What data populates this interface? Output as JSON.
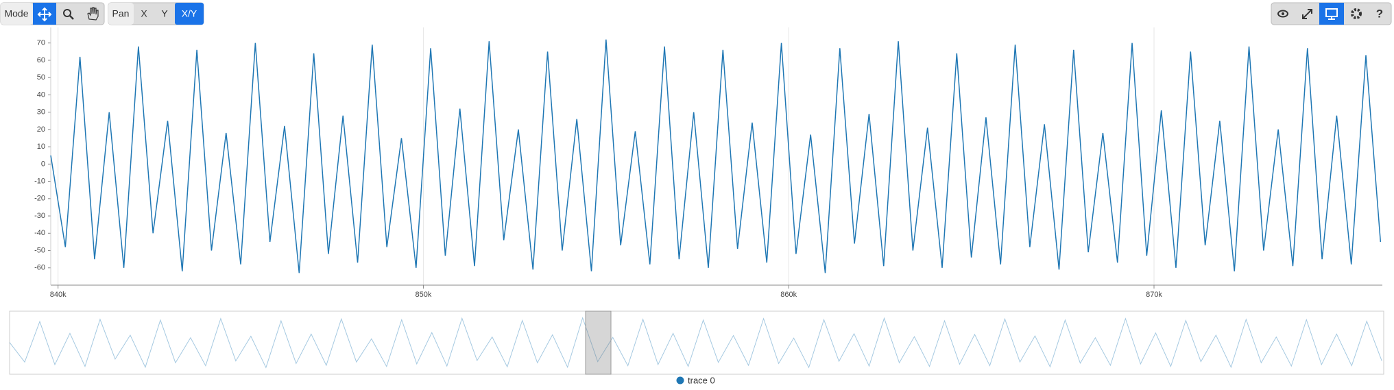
{
  "toolbar": {
    "mode": "Mode",
    "pan": "Pan",
    "axes": [
      "X",
      "Y",
      "X/Y"
    ],
    "help": "?"
  },
  "chart_data": {
    "type": "line",
    "x": [
      839800,
      840200,
      840600,
      841000,
      841400,
      841800,
      842200,
      842600,
      843000,
      843400,
      843800,
      844200,
      844600,
      845000,
      845400,
      845800,
      846200,
      846600,
      847000,
      847400,
      847800,
      848200,
      848600,
      849000,
      849400,
      849800,
      850200,
      850600,
      851000,
      851400,
      851800,
      852200,
      852600,
      853000,
      853400,
      853800,
      854200,
      854600,
      855000,
      855400,
      855800,
      856200,
      856600,
      857000,
      857400,
      857800,
      858200,
      858600,
      859000,
      859400,
      859800,
      860200,
      860600,
      861000,
      861400,
      861800,
      862200,
      862600,
      863000,
      863400,
      863800,
      864200,
      864600,
      865000,
      865400,
      865800,
      866200,
      866600,
      867000,
      867400,
      867800,
      868200,
      868600,
      869000,
      869400,
      869800,
      870200,
      870600,
      871000,
      871400,
      871800,
      872200,
      872600,
      873000,
      873400,
      873800,
      874200,
      874600,
      875000,
      875400,
      875800,
      876200
    ],
    "series": [
      {
        "name": "trace 0",
        "color": "#1f77b4",
        "values": [
          5,
          -48,
          62,
          -55,
          30,
          -60,
          68,
          -40,
          25,
          -62,
          66,
          -50,
          18,
          -58,
          70,
          -45,
          22,
          -63,
          64,
          -52,
          28,
          -57,
          69,
          -48,
          15,
          -60,
          67,
          -53,
          32,
          -59,
          71,
          -44,
          20,
          -61,
          65,
          -50,
          26,
          -62,
          72,
          -47,
          19,
          -58,
          68,
          -55,
          30,
          -60,
          66,
          -49,
          24,
          -57,
          70,
          -52,
          17,
          -63,
          67,
          -46,
          29,
          -59,
          71,
          -50,
          21,
          -60,
          64,
          -54,
          27,
          -58,
          69,
          -48,
          23,
          -61,
          66,
          -51,
          18,
          -57,
          70,
          -53,
          31,
          -60,
          65,
          -47,
          25,
          -62,
          68,
          -50,
          20,
          -59,
          67,
          -55,
          28,
          -58,
          63,
          -45
        ]
      }
    ],
    "xlim": [
      839800,
      876250
    ],
    "xticks": [
      {
        "value": 840000,
        "label": "840k"
      },
      {
        "value": 850000,
        "label": "850k"
      },
      {
        "value": 860000,
        "label": "860k"
      },
      {
        "value": 870000,
        "label": "870k"
      }
    ],
    "ylim": [
      -70,
      79
    ],
    "yticks": [
      70,
      60,
      50,
      40,
      30,
      20,
      10,
      0,
      -10,
      -20,
      -30,
      -40,
      -50,
      -60
    ],
    "xgrid": true
  }
}
